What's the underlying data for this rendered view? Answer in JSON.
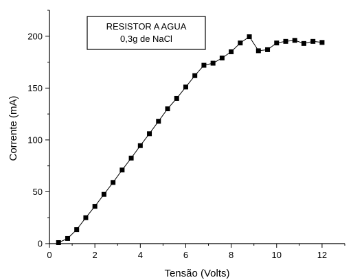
{
  "chart_data": {
    "type": "line",
    "title": "",
    "xlabel": "Tensão (Volts)",
    "ylabel": "Corrente (mA)",
    "xlim": [
      0,
      13
    ],
    "ylim": [
      0,
      225
    ],
    "x_ticks": [
      0,
      2,
      4,
      6,
      8,
      10,
      12
    ],
    "y_ticks": [
      0,
      50,
      100,
      150,
      200
    ],
    "marker": "square",
    "grid": false,
    "annotation": {
      "line1": "RESISTOR A AGUA",
      "line2": "0,3g de NaCl"
    },
    "series": [
      {
        "x": [
          0.4,
          0.8,
          1.2,
          1.6,
          2.0,
          2.4,
          2.8,
          3.2,
          3.6,
          4.0,
          4.4,
          4.8,
          5.2,
          5.6,
          6.0,
          6.4,
          6.8,
          7.2,
          7.6,
          8.0,
          8.4,
          8.8,
          9.2,
          9.6,
          10.0,
          10.4,
          10.8,
          11.2,
          11.6,
          12.0
        ],
        "y": [
          1,
          5,
          13.5,
          25,
          36,
          47.5,
          59,
          71,
          82.5,
          94.5,
          106,
          118,
          130,
          140,
          151,
          162,
          172,
          174,
          179,
          185,
          193.5,
          199.5,
          186,
          187,
          193.5,
          195,
          196,
          193,
          195,
          194
        ]
      }
    ],
    "colors": {
      "line": "#000000",
      "marker": "#000000",
      "axis": "#000000"
    }
  }
}
